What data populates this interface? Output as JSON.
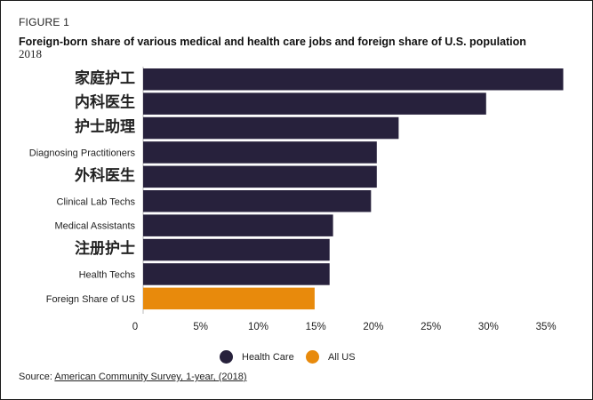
{
  "figure": {
    "label": "FIGURE 1"
  },
  "chart_data": {
    "type": "bar",
    "orientation": "horizontal",
    "title": "Foreign-born share of various medical and health care jobs and foreign share of U.S. population",
    "subtitle": "2018",
    "categories": [
      "家庭护工",
      "内科医生",
      "护士助理",
      "Diagnosing Practitioners",
      "外科医生",
      "Clinical Lab Techs",
      "Medical Assistants",
      "注册护士",
      "Health Techs",
      "Foreign Share of US"
    ],
    "values": [
      36.5,
      29.8,
      22.2,
      20.3,
      20.3,
      19.8,
      16.5,
      16.2,
      16.2,
      14.9
    ],
    "groups": [
      "Health Care",
      "Health Care",
      "Health Care",
      "Health Care",
      "Health Care",
      "Health Care",
      "Health Care",
      "Health Care",
      "Health Care",
      "All US"
    ],
    "xlim": [
      0,
      37
    ],
    "xticks": [
      0,
      5,
      10,
      15,
      20,
      25,
      30,
      35
    ],
    "xtick_labels": [
      "0",
      "5%",
      "10%",
      "15%",
      "20%",
      "25%",
      "30%",
      "35%"
    ],
    "xlabel": "",
    "ylabel": "",
    "legend": [
      {
        "name": "Health Care",
        "color": "#27213c"
      },
      {
        "name": "All US",
        "color": "#e88a0c"
      }
    ]
  },
  "source": {
    "prefix": "Source: ",
    "link_text": "American Community Survey, 1-year, (2018)"
  }
}
